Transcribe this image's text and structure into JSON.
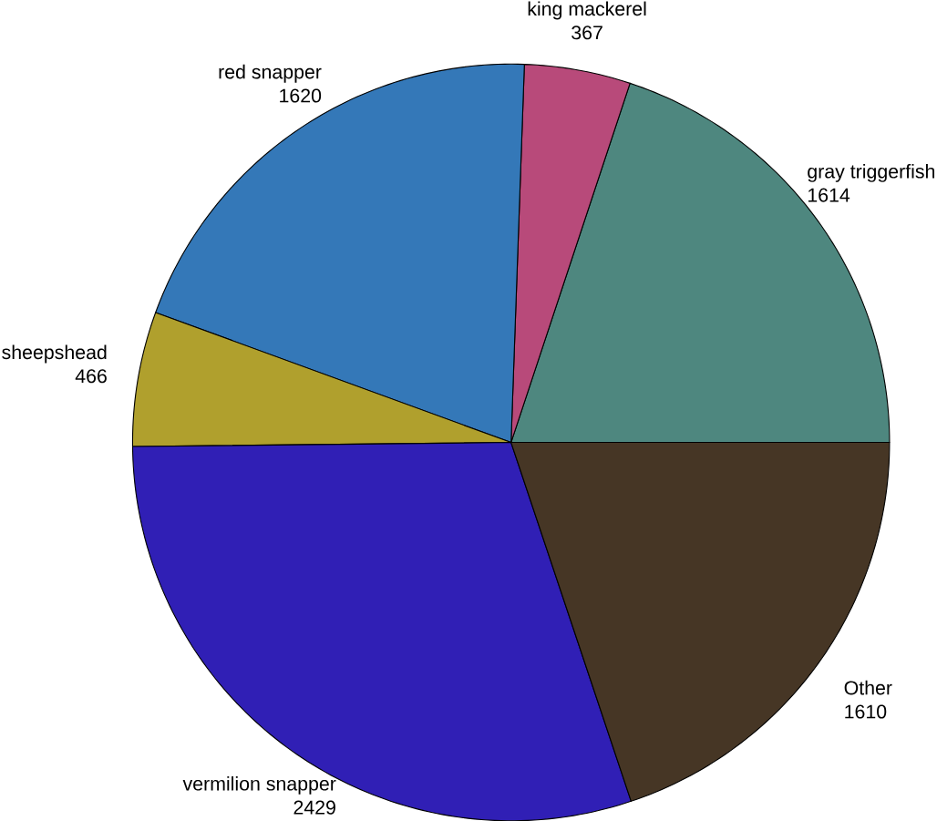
{
  "chart_data": {
    "type": "pie",
    "categories": [
      "gray triggerfish",
      "king mackerel",
      "red snapper",
      "sheepshead",
      "vermilion snapper",
      "Other"
    ],
    "values": [
      1614,
      367,
      1620,
      466,
      2429,
      1610
    ],
    "colors": [
      "#4e877f",
      "#b84a7a",
      "#3478b8",
      "#b0a02d",
      "#301fb5",
      "#463625"
    ],
    "data_labels": true
  }
}
